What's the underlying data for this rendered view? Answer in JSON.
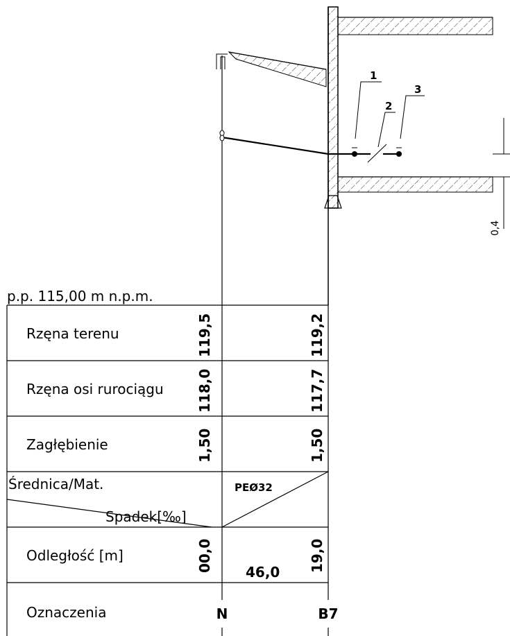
{
  "header": {
    "level": "p.p. 115,00 m n.p.m."
  },
  "rows": [
    {
      "label": "Rzęna terenu",
      "values": [
        "119,5",
        "119,2"
      ]
    },
    {
      "label": "Rzęna osi rurociągu",
      "values": [
        "118,0",
        "117,7"
      ]
    },
    {
      "label": "Zagłębienie",
      "values": [
        "1,50",
        "1,50"
      ]
    }
  ],
  "diameter": {
    "label": "Średnica/Mat.",
    "slope_label": "Spadek[‰]",
    "value": "PEØ32"
  },
  "distance": {
    "label": "Odległość [m]",
    "values": [
      "00,0",
      "19,0"
    ],
    "segment": "46,0"
  },
  "markers": {
    "label": "Oznaczenia",
    "nodes": [
      "N",
      "B7"
    ]
  },
  "callouts": [
    "1",
    "2",
    "3"
  ],
  "dimension": "0,4"
}
